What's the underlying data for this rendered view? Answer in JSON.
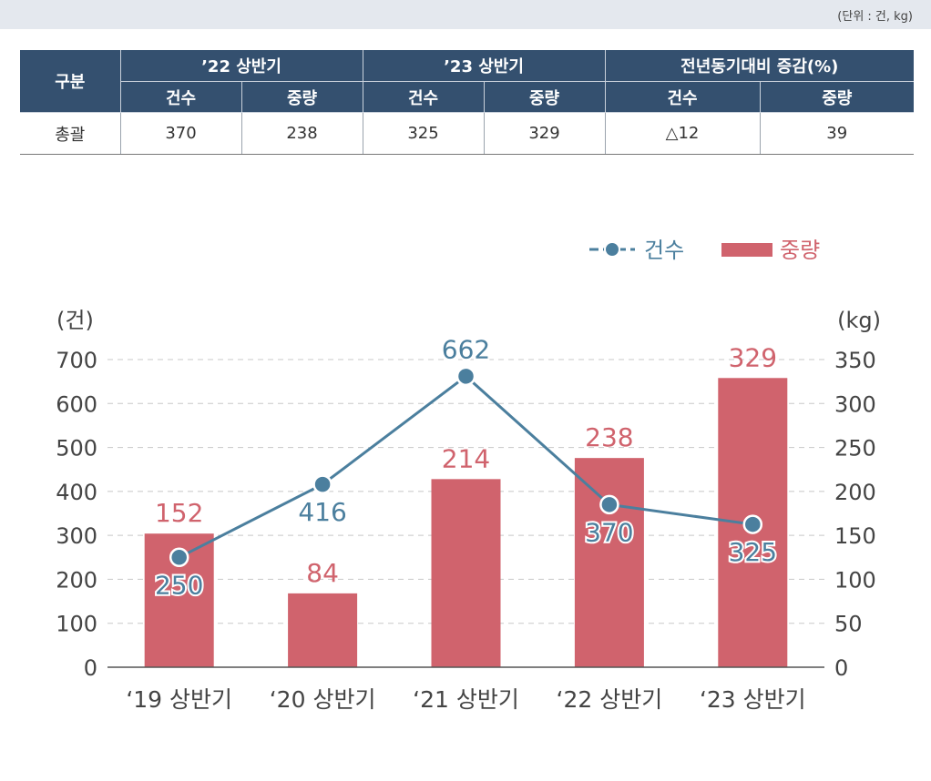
{
  "unit_note": "(단위 : 건, kg)",
  "table": {
    "row_header": "구분",
    "groups": [
      "’22 상반기",
      "’23 상반기",
      "전년동기대비 증감(%)"
    ],
    "subheaders": [
      "건수",
      "중량",
      "건수",
      "중량",
      "건수",
      "중량"
    ],
    "rows": [
      {
        "label": "총괄",
        "cells": [
          "370",
          "238",
          "325",
          "329",
          "△12",
          "39"
        ]
      }
    ]
  },
  "chart_data": {
    "type": "bar+line",
    "categories": [
      "‘19 상반기",
      "‘20 상반기",
      "‘21 상반기",
      "‘22 상반기",
      "‘23 상반기"
    ],
    "series": [
      {
        "name": "중량",
        "kind": "bar",
        "axis": "right",
        "color": "#d0636d",
        "values": [
          152,
          84,
          214,
          238,
          329
        ]
      },
      {
        "name": "건수",
        "kind": "line",
        "axis": "left",
        "color": "#4b7f9e",
        "values": [
          250,
          416,
          662,
          370,
          325
        ]
      }
    ],
    "left_axis": {
      "label": "(건)",
      "range": [
        0,
        700
      ],
      "ticks": [
        0,
        100,
        200,
        300,
        400,
        500,
        600,
        700
      ]
    },
    "right_axis": {
      "label": "(kg)",
      "range": [
        0,
        350
      ],
      "ticks": [
        0,
        50,
        100,
        150,
        200,
        250,
        300,
        350
      ]
    },
    "grid": "dashed horizontal",
    "legend_position": "top-right"
  }
}
